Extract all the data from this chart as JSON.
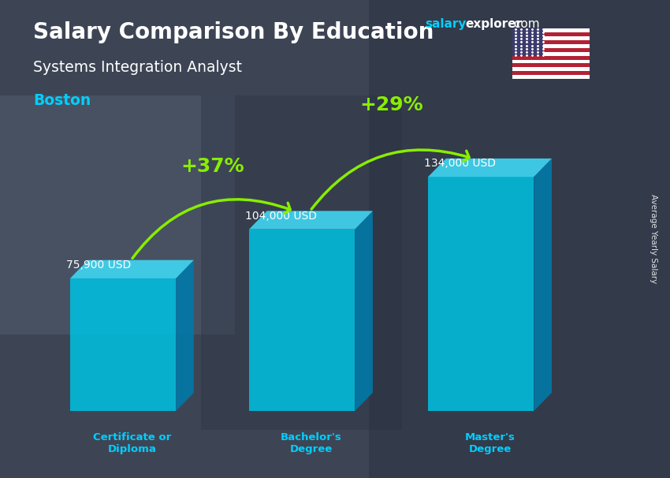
{
  "title": "Salary Comparison By Education",
  "subtitle_job": "Systems Integration Analyst",
  "subtitle_city": "Boston",
  "ylabel": "Average Yearly Salary",
  "categories": [
    "Certificate or\nDiploma",
    "Bachelor's\nDegree",
    "Master's\nDegree"
  ],
  "values": [
    75900,
    104000,
    134000
  ],
  "value_labels": [
    "75,900 USD",
    "104,000 USD",
    "134,000 USD"
  ],
  "pct_labels": [
    "+37%",
    "+29%"
  ],
  "bar_color_front": "#00bfdf",
  "bar_color_side": "#007aaa",
  "bar_color_top": "#40d4f0",
  "bg_color": "#4a5568",
  "title_color": "#ffffff",
  "subtitle_job_color": "#ffffff",
  "subtitle_city_color": "#00cfff",
  "value_label_color": "#ffffff",
  "pct_color": "#88ee00",
  "arrow_color": "#55dd00",
  "watermark_salary_color": "#00cfff",
  "watermark_rest_color": "#ffffff",
  "bar_positions": [
    1.1,
    3.3,
    5.5
  ],
  "bar_width": 1.3,
  "side_depth_x": 0.22,
  "side_depth_y": 0.06,
  "ylim": [
    0,
    175000
  ],
  "xlim": [
    0,
    7.0
  ]
}
